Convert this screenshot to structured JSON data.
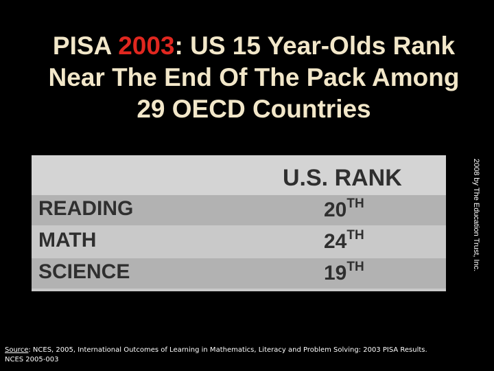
{
  "slide": {
    "title_line1_prefix": "PISA ",
    "title_line1_year": "2003",
    "title_line1_suffix": ": US 15 Year-Olds Rank",
    "title_line2": "Near The End Of The Pack Among",
    "title_line3": "29 OECD Countries",
    "highlight_color": "#e0271f",
    "text_color": "#f2e7c9",
    "background_color": "#000000"
  },
  "table": {
    "column_header": "U.S. RANK",
    "rows": [
      {
        "subject": "READING",
        "rank": "20",
        "suffix": "TH"
      },
      {
        "subject": "MATH",
        "rank": "24",
        "suffix": "TH"
      },
      {
        "subject": "SCIENCE",
        "rank": "19",
        "suffix": "TH"
      }
    ]
  },
  "copyright": "2008 by The Education Trust, Inc.",
  "source": {
    "label": "Source",
    "text": ": NCES, 2005, International Outcomes of Learning in Mathematics, Literacy and Problem Solving: 2003 PISA Results.",
    "line2": "NCES 2005-003"
  }
}
